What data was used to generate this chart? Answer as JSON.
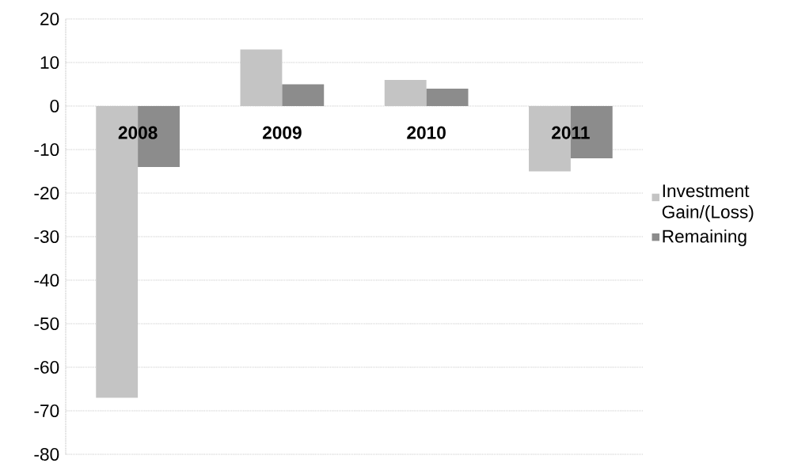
{
  "chart_data": {
    "type": "bar",
    "categories": [
      "2008",
      "2009",
      "2010",
      "2011"
    ],
    "series": [
      {
        "name": "Investment Gain/(Loss)",
        "color": "#c4c4c4",
        "values": [
          -67,
          13,
          6,
          -15
        ]
      },
      {
        "name": "Remaining",
        "color": "#8c8c8c",
        "values": [
          -14,
          5,
          4,
          -12
        ]
      }
    ],
    "ylim": [
      -80,
      20
    ],
    "yticks": [
      -80,
      -70,
      -60,
      -50,
      -40,
      -30,
      -20,
      -10,
      0,
      10,
      20
    ],
    "grid": "y",
    "legend": "right"
  }
}
